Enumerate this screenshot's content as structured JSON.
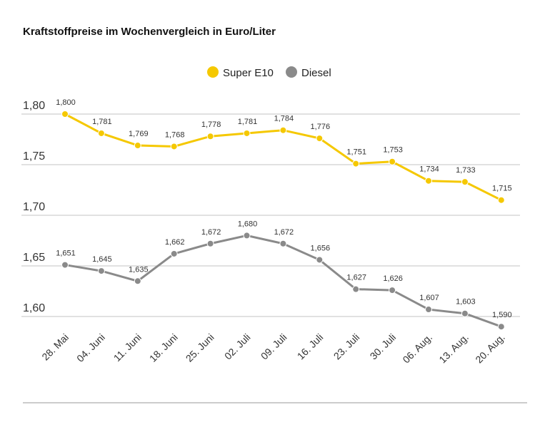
{
  "chart_data": {
    "type": "line",
    "title": "Kraftstoffpreise im Wochenvergleich in Euro/Liter",
    "categories": [
      "28. Mai",
      "04. Juni",
      "11. Juni",
      "18. Juni",
      "25. Juni",
      "02. Juli",
      "09. Juli",
      "16. Juli",
      "23. Juli",
      "30. Juli",
      "06. Aug.",
      "13. Aug.",
      "20. Aug."
    ],
    "series": [
      {
        "name": "Super E10",
        "color": "#f5c800",
        "values": [
          1.8,
          1.781,
          1.769,
          1.768,
          1.778,
          1.781,
          1.784,
          1.776,
          1.751,
          1.753,
          1.734,
          1.733,
          1.715
        ],
        "labels": [
          "1,800",
          "1,781",
          "1,769",
          "1,768",
          "1,778",
          "1,781",
          "1,784",
          "1,776",
          "1,751",
          "1,753",
          "1,734",
          "1,733",
          "1,715"
        ]
      },
      {
        "name": "Diesel",
        "color": "#8a8a8a",
        "values": [
          1.651,
          1.645,
          1.635,
          1.662,
          1.672,
          1.68,
          1.672,
          1.656,
          1.627,
          1.626,
          1.607,
          1.603,
          1.59
        ],
        "labels": [
          "1,651",
          "1,645",
          "1,635",
          "1,662",
          "1,672",
          "1,680",
          "1,672",
          "1,656",
          "1,627",
          "1,626",
          "1,607",
          "1,603",
          "1,590"
        ]
      }
    ],
    "yticks": [
      1.8,
      1.75,
      1.7,
      1.65,
      1.6
    ],
    "ytick_labels": [
      "1,80",
      "1,75",
      "1,70",
      "1,65",
      "1,60"
    ],
    "ylim": [
      1.6,
      1.8
    ],
    "grid": true,
    "legend": "top-center"
  }
}
